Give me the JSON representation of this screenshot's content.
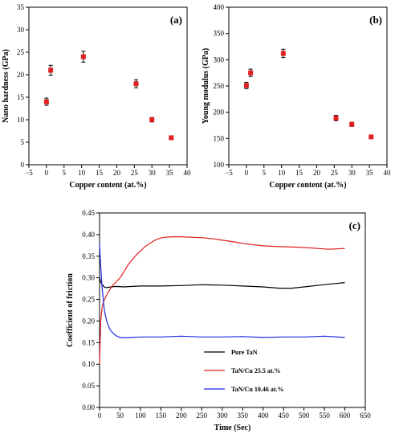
{
  "chart_data": [
    {
      "type": "scatter",
      "panel_label": "(a)",
      "xlabel": "Copper content (at.%)",
      "ylabel": "Nano hardness (GPa)",
      "xlim": [
        -5,
        40
      ],
      "ylim": [
        0,
        35
      ],
      "xticks": [
        -5,
        0,
        5,
        10,
        15,
        20,
        25,
        30,
        35,
        40
      ],
      "yticks": [
        0,
        5,
        10,
        15,
        20,
        25,
        30,
        35
      ],
      "xtick_labels": [
        "−5",
        "0",
        "5",
        "10",
        "15",
        "20",
        "25",
        "30",
        "35",
        "40"
      ],
      "ytick_labels": [
        "0",
        "5",
        "10",
        "15",
        "20",
        "25",
        "30",
        "35"
      ],
      "point_color": "#e02020",
      "points": [
        {
          "x": 0,
          "y": 14.0,
          "err": 0.8
        },
        {
          "x": 1.2,
          "y": 21.0,
          "err": 1.1
        },
        {
          "x": 10.5,
          "y": 24.0,
          "err": 1.2
        },
        {
          "x": 25.5,
          "y": 18.0,
          "err": 0.9
        },
        {
          "x": 30,
          "y": 10.0,
          "err": 0.5
        },
        {
          "x": 35.5,
          "y": 6.0,
          "err": 0.3
        }
      ]
    },
    {
      "type": "scatter",
      "panel_label": "(b)",
      "xlabel": "Copper content (at.%)",
      "ylabel": "Young modulus (GPa)",
      "xlim": [
        -5,
        40
      ],
      "ylim": [
        100,
        400
      ],
      "xticks": [
        -5,
        0,
        5,
        10,
        15,
        20,
        25,
        30,
        35,
        40
      ],
      "yticks": [
        100,
        150,
        200,
        250,
        300,
        350,
        400
      ],
      "xtick_labels": [
        "−5",
        "0",
        "5",
        "10",
        "15",
        "20",
        "25",
        "30",
        "35",
        "40"
      ],
      "ytick_labels": [
        "100",
        "150",
        "200",
        "250",
        "300",
        "350",
        "400"
      ],
      "point_color": "#e02020",
      "points": [
        {
          "x": 0,
          "y": 251,
          "err": 6
        },
        {
          "x": 1.2,
          "y": 275,
          "err": 7
        },
        {
          "x": 10.5,
          "y": 312,
          "err": 8
        },
        {
          "x": 25.5,
          "y": 189,
          "err": 5
        },
        {
          "x": 30,
          "y": 177,
          "err": 4
        },
        {
          "x": 35.5,
          "y": 153,
          "err": 3
        }
      ]
    },
    {
      "type": "line",
      "panel_label": "(c)",
      "xlabel": "Time (Sec)",
      "ylabel": "Coefficient of friction",
      "xlim": [
        0,
        650
      ],
      "ylim": [
        0,
        0.45
      ],
      "xticks": [
        0,
        50,
        100,
        150,
        200,
        250,
        300,
        350,
        400,
        450,
        500,
        550,
        600,
        650
      ],
      "yticks": [
        0,
        0.05,
        0.1,
        0.15,
        0.2,
        0.25,
        0.3,
        0.35,
        0.4,
        0.45
      ],
      "xtick_labels": [
        "0",
        "50",
        "100",
        "150",
        "200",
        "250",
        "300",
        "350",
        "400",
        "450",
        "500",
        "550",
        "600",
        "650"
      ],
      "ytick_labels": [
        "0.00",
        "0.05",
        "0.10",
        "0.15",
        "0.20",
        "0.25",
        "0.30",
        "0.35",
        "0.40",
        "0.45"
      ],
      "legend_position": "lower-center",
      "series": [
        {
          "name": "Pure TaN",
          "color": "#000000",
          "x": [
            0,
            3,
            6,
            10,
            15,
            20,
            30,
            40,
            60,
            80,
            100,
            150,
            200,
            250,
            300,
            350,
            400,
            440,
            470,
            500,
            530,
            560,
            600
          ],
          "y": [
            0.3,
            0.29,
            0.285,
            0.28,
            0.277,
            0.278,
            0.279,
            0.28,
            0.279,
            0.28,
            0.281,
            0.281,
            0.282,
            0.284,
            0.283,
            0.281,
            0.279,
            0.276,
            0.276,
            0.279,
            0.282,
            0.285,
            0.289
          ]
        },
        {
          "name": "TaN/Cu 25.5 at.%",
          "color": "#e02020",
          "x": [
            0,
            3,
            6,
            10,
            15,
            20,
            30,
            40,
            50,
            60,
            70,
            80,
            90,
            100,
            110,
            120,
            130,
            140,
            150,
            160,
            180,
            200,
            220,
            250,
            280,
            300,
            330,
            360,
            400,
            440,
            480,
            520,
            560,
            600
          ],
          "y": [
            0.1,
            0.2,
            0.23,
            0.245,
            0.255,
            0.265,
            0.28,
            0.29,
            0.3,
            0.315,
            0.33,
            0.342,
            0.353,
            0.362,
            0.371,
            0.378,
            0.384,
            0.389,
            0.392,
            0.394,
            0.395,
            0.395,
            0.394,
            0.393,
            0.39,
            0.387,
            0.383,
            0.378,
            0.374,
            0.372,
            0.371,
            0.369,
            0.366,
            0.368
          ]
        },
        {
          "name": "TaN/Cu 10.46 at.%",
          "color": "#1e28e6",
          "x": [
            0,
            2,
            4,
            6,
            8,
            10,
            12,
            15,
            18,
            22,
            26,
            30,
            35,
            40,
            45,
            50,
            60,
            80,
            100,
            150,
            200,
            250,
            300,
            350,
            400,
            450,
            500,
            550,
            600
          ],
          "y": [
            0.38,
            0.34,
            0.31,
            0.28,
            0.26,
            0.24,
            0.225,
            0.21,
            0.198,
            0.188,
            0.18,
            0.175,
            0.17,
            0.166,
            0.164,
            0.162,
            0.161,
            0.162,
            0.163,
            0.163,
            0.165,
            0.163,
            0.163,
            0.164,
            0.162,
            0.163,
            0.163,
            0.165,
            0.162
          ]
        }
      ]
    }
  ]
}
